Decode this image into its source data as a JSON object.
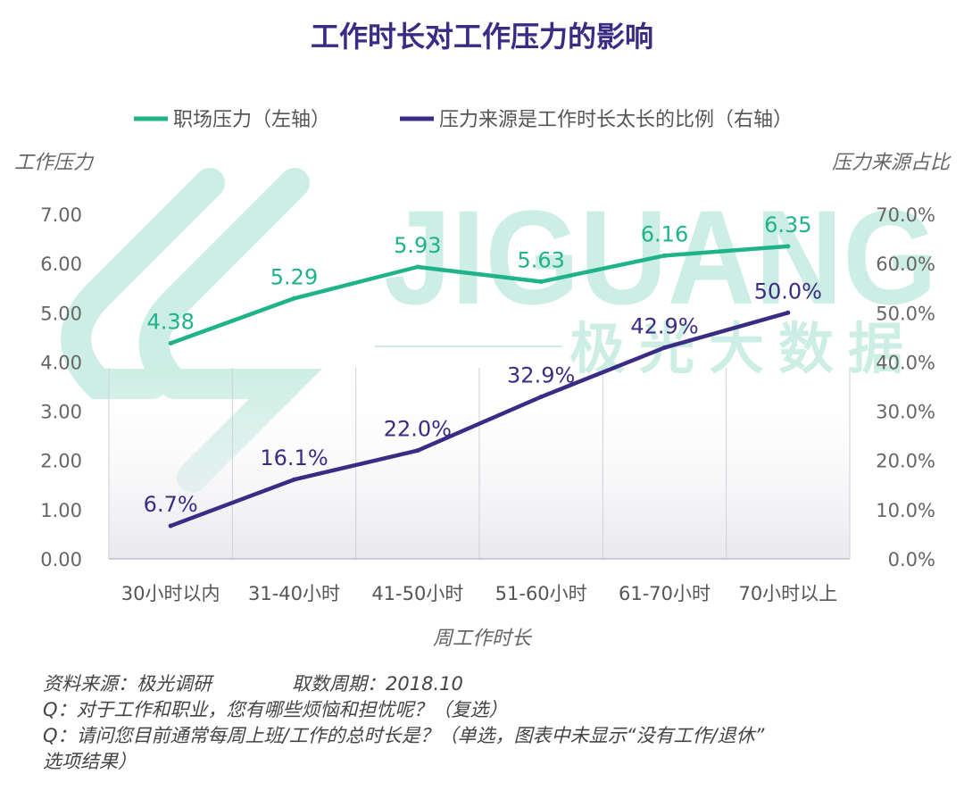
{
  "chart_data": {
    "type": "line",
    "title": "工作时长对工作压力的影响",
    "xlabel": "周工作时长",
    "ylabel_left": "工作压力",
    "ylabel_right": "压力来源占比",
    "categories": [
      "30小时以内",
      "31-40小时",
      "41-50小时",
      "51-60小时",
      "61-70小时",
      "70小时以上"
    ],
    "ylim_left": [
      0,
      7
    ],
    "ylim_right": [
      0,
      70
    ],
    "yticks_left": [
      "0.00",
      "1.00",
      "2.00",
      "3.00",
      "4.00",
      "5.00",
      "6.00",
      "7.00"
    ],
    "yticks_right": [
      "0.0%",
      "10.0%",
      "20.0%",
      "30.0%",
      "40.0%",
      "50.0%",
      "60.0%",
      "70.0%"
    ],
    "legend_position": "top",
    "grid": "vertical",
    "series": [
      {
        "name": "职场压力（左轴）",
        "axis": "left",
        "color": "#1fb38a",
        "values": [
          4.38,
          5.29,
          5.93,
          5.63,
          6.16,
          6.35
        ],
        "labels": [
          "4.38",
          "5.29",
          "5.93",
          "5.63",
          "6.16",
          "6.35"
        ]
      },
      {
        "name": "压力来源是工作时长太长的比例（右轴）",
        "axis": "right",
        "color": "#3a2c84",
        "values": [
          6.7,
          16.1,
          22.0,
          32.9,
          42.9,
          50.0
        ],
        "labels": [
          "6.7%",
          "16.1%",
          "22.0%",
          "32.9%",
          "42.9%",
          "50.0%"
        ]
      }
    ]
  },
  "watermark": {
    "brand": "JIGUANG",
    "cn": "极光大数据",
    "color": "#1fb38a"
  },
  "footer": {
    "source": "资料来源：极光调研",
    "period": "取数周期：2018.10",
    "q1": "Q：对于工作和职业，您有哪些烦恼和担忧呢？（复选）",
    "q2": "Q：请问您目前通常每周上班/工作的总时长是？（单选，图表中未显示“没有工作/退休”",
    "q2b": "选项结果）"
  }
}
